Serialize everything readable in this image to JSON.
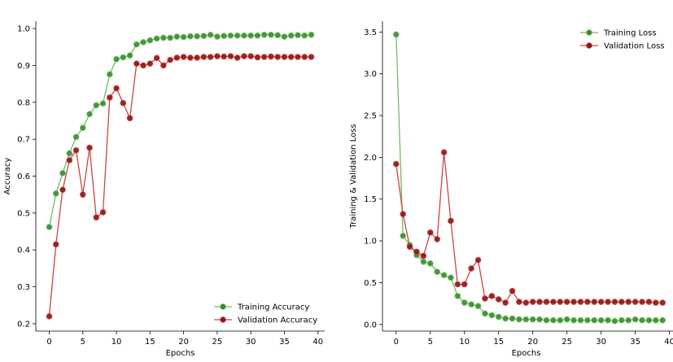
{
  "chart_data": [
    {
      "type": "line",
      "xlabel": "Epochs",
      "ylabel": "Accuracy",
      "xlim": [
        -2,
        41
      ],
      "ylim": [
        0.18,
        1.02
      ],
      "xticks": [
        0,
        5,
        10,
        15,
        20,
        25,
        30,
        35,
        40
      ],
      "yticks": [
        0.2,
        0.3,
        0.4,
        0.5,
        0.6,
        0.7,
        0.8,
        0.9,
        1.0
      ],
      "ytick_labels": [
        "0.2",
        "0.3",
        "0.4",
        "0.5",
        "0.6",
        "0.7",
        "0.8",
        "0.9",
        "1.0"
      ],
      "grid": false,
      "legend_position": "bottom-right",
      "x": [
        0,
        1,
        2,
        3,
        4,
        5,
        6,
        7,
        8,
        9,
        10,
        11,
        12,
        13,
        14,
        15,
        16,
        17,
        18,
        19,
        20,
        21,
        22,
        23,
        24,
        25,
        26,
        27,
        28,
        29,
        30,
        31,
        32,
        33,
        34,
        35,
        36,
        37,
        38,
        39
      ],
      "series": [
        {
          "name": "Training Accuracy",
          "line_color": "#6dbf5e",
          "marker_color": "#3c8a32",
          "values": [
            0.462,
            0.553,
            0.608,
            0.662,
            0.706,
            0.731,
            0.768,
            0.792,
            0.797,
            0.876,
            0.917,
            0.922,
            0.927,
            0.957,
            0.963,
            0.968,
            0.973,
            0.975,
            0.975,
            0.978,
            0.977,
            0.979,
            0.979,
            0.98,
            0.983,
            0.978,
            0.98,
            0.981,
            0.981,
            0.981,
            0.981,
            0.981,
            0.983,
            0.983,
            0.982,
            0.978,
            0.981,
            0.982,
            0.981,
            0.983
          ]
        },
        {
          "name": "Validation Accuracy",
          "line_color": "#cc4444",
          "marker_color": "#8b1515",
          "values": [
            0.22,
            0.415,
            0.563,
            0.643,
            0.67,
            0.55,
            0.677,
            0.488,
            0.502,
            0.813,
            0.838,
            0.798,
            0.757,
            0.905,
            0.9,
            0.905,
            0.92,
            0.9,
            0.915,
            0.921,
            0.923,
            0.921,
            0.921,
            0.923,
            0.923,
            0.925,
            0.924,
            0.925,
            0.921,
            0.925,
            0.925,
            0.922,
            0.923,
            0.924,
            0.923,
            0.923,
            0.923,
            0.923,
            0.923,
            0.923
          ]
        }
      ]
    },
    {
      "type": "line",
      "xlabel": "Epochs",
      "ylabel": "Training & Validation Loss",
      "xlim": [
        -2,
        41
      ],
      "ylim": [
        -0.08,
        3.63
      ],
      "xticks": [
        0,
        5,
        10,
        15,
        20,
        25,
        30,
        35,
        40
      ],
      "yticks": [
        0.0,
        0.5,
        1.0,
        1.5,
        2.0,
        2.5,
        3.0,
        3.5
      ],
      "ytick_labels": [
        "0.0",
        "0.5",
        "1.0",
        "1.5",
        "2.0",
        "2.5",
        "3.0",
        "3.5"
      ],
      "grid": false,
      "legend_position": "top-right",
      "x": [
        0,
        1,
        2,
        3,
        4,
        5,
        6,
        7,
        8,
        9,
        10,
        11,
        12,
        13,
        14,
        15,
        16,
        17,
        18,
        19,
        20,
        21,
        22,
        23,
        24,
        25,
        26,
        27,
        28,
        29,
        30,
        31,
        32,
        33,
        34,
        35,
        36,
        37,
        38,
        39
      ],
      "series": [
        {
          "name": "Training Loss",
          "line_color": "#6dbf5e",
          "marker_color": "#3c8a32",
          "values": [
            3.47,
            1.06,
            0.95,
            0.83,
            0.75,
            0.73,
            0.63,
            0.59,
            0.56,
            0.34,
            0.26,
            0.24,
            0.22,
            0.13,
            0.11,
            0.09,
            0.07,
            0.07,
            0.06,
            0.06,
            0.06,
            0.06,
            0.05,
            0.05,
            0.05,
            0.06,
            0.05,
            0.05,
            0.05,
            0.05,
            0.05,
            0.05,
            0.04,
            0.05,
            0.05,
            0.06,
            0.05,
            0.05,
            0.05,
            0.05
          ]
        },
        {
          "name": "Validation Loss",
          "line_color": "#cc4444",
          "marker_color": "#8b1515",
          "values": [
            1.92,
            1.32,
            0.93,
            0.87,
            0.82,
            1.1,
            1.02,
            2.06,
            1.24,
            0.48,
            0.48,
            0.67,
            0.77,
            0.31,
            0.34,
            0.3,
            0.26,
            0.4,
            0.27,
            0.26,
            0.27,
            0.27,
            0.27,
            0.27,
            0.27,
            0.27,
            0.27,
            0.27,
            0.27,
            0.27,
            0.27,
            0.27,
            0.27,
            0.27,
            0.27,
            0.27,
            0.27,
            0.27,
            0.26,
            0.26
          ]
        }
      ]
    }
  ]
}
